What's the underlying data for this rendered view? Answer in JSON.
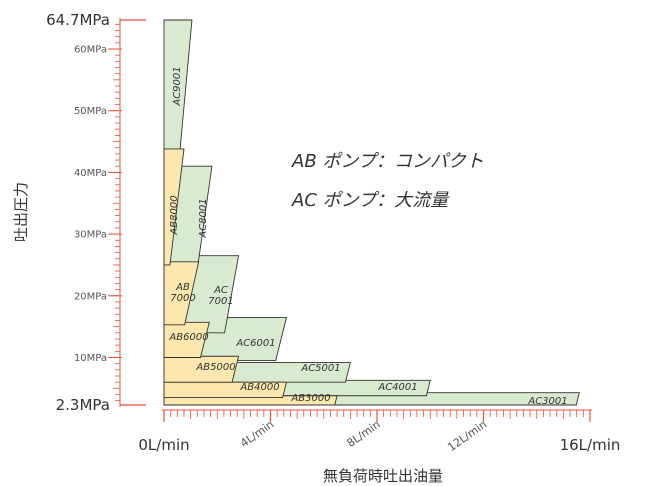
{
  "chart_data": {
    "type": "area",
    "xlabel": "無負荷時吐出油量",
    "ylabel": "吐出圧力",
    "xlim": [
      0,
      16
    ],
    "ylim": [
      2.3,
      64.7
    ],
    "x_ticks": [
      "0L/min",
      "4L/min",
      "8L/min",
      "12L/min",
      "16L/min"
    ],
    "y_ticks": [
      {
        "label": "64.7MPa",
        "value": 64.7,
        "big": true
      },
      {
        "label": "60MPa",
        "value": 60
      },
      {
        "label": "50MPa",
        "value": 50
      },
      {
        "label": "40MPa",
        "value": 40
      },
      {
        "label": "30MPa",
        "value": 30
      },
      {
        "label": "20MPa",
        "value": 20
      },
      {
        "label": "10MPa",
        "value": 10
      },
      {
        "label": "2.3MPa",
        "value": 2.3,
        "big": true
      }
    ],
    "notes": [
      "AB ポンプ：コンパクト",
      "AC ポンプ：大流量"
    ],
    "colors": {
      "AC": "#d8ead0",
      "AB": "#fde7ae",
      "outline": "#333333",
      "axis": "#e8503a"
    },
    "series": [
      {
        "name": "AC",
        "lines": [
          "AC3001"
        ],
        "group": "AC",
        "x0": 0,
        "x1": 15.6,
        "y0": 2.3,
        "y1": 4.3
      },
      {
        "name": "AC",
        "lines": [
          "AC4001"
        ],
        "group": "AC",
        "x0": 0,
        "x1": 10.0,
        "y0": 3.8,
        "y1": 6.3
      },
      {
        "name": "AC",
        "lines": [
          "AC5001"
        ],
        "group": "AC",
        "x0": 0,
        "x1": 7.0,
        "y0": 6.0,
        "y1": 9.2
      },
      {
        "name": "AC",
        "lines": [
          "AC6001"
        ],
        "group": "AC",
        "x0": 0,
        "x1": 4.6,
        "y0": 9.5,
        "y1": 16.5
      },
      {
        "name": "AC",
        "lines": [
          "AC",
          "7001"
        ],
        "group": "AC",
        "x0": 0,
        "x1": 2.8,
        "y0": 14.0,
        "y1": 26.5
      },
      {
        "name": "AC",
        "lines": [
          "AC8001"
        ],
        "group": "AC",
        "x0": 0,
        "x1": 1.8,
        "y0": 25.0,
        "y1": 41.0
      },
      {
        "name": "AC",
        "lines": [
          "AC9001"
        ],
        "group": "AC",
        "x0": 0,
        "x1": 1.05,
        "y0": 40.0,
        "y1": 64.7
      },
      {
        "name": "AB",
        "lines": [
          "AB3000"
        ],
        "group": "AB",
        "x0": 0,
        "x1": 6.5,
        "y0": 2.3,
        "y1": 3.8
      },
      {
        "name": "AB",
        "lines": [
          "AB4000"
        ],
        "group": "AB",
        "x0": 0,
        "x1": 4.6,
        "y0": 3.5,
        "y1": 6.0
      },
      {
        "name": "AB",
        "lines": [
          "AB5000"
        ],
        "group": "AB",
        "x0": 0,
        "x1": 2.8,
        "y0": 6.0,
        "y1": 10.2
      },
      {
        "name": "AB",
        "lines": [
          "AB6000"
        ],
        "group": "AB",
        "x0": 0,
        "x1": 1.7,
        "y0": 10.0,
        "y1": 15.7
      },
      {
        "name": "AB",
        "lines": [
          "AB",
          "7000"
        ],
        "group": "AB",
        "x0": 0,
        "x1": 1.3,
        "y0": 15.3,
        "y1": 25.5
      },
      {
        "name": "AB",
        "lines": [
          "AB8000"
        ],
        "group": "AB",
        "x0": 0,
        "x1": 0.75,
        "y0": 25.0,
        "y1": 43.8
      }
    ]
  }
}
